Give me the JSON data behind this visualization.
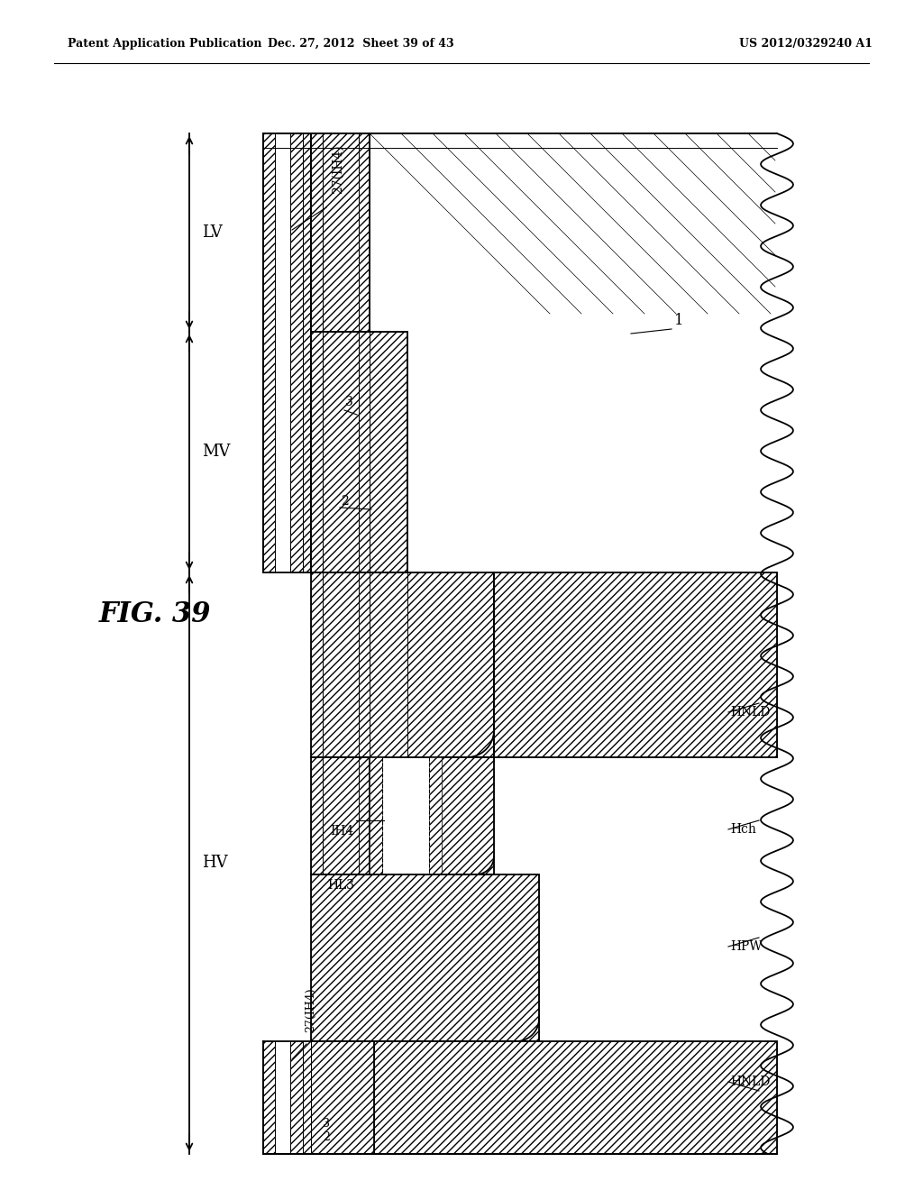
{
  "header_left": "Patent Application Publication",
  "header_center": "Dec. 27, 2012  Sheet 39 of 43",
  "header_right": "US 2012/0329240 A1",
  "fig_label": "FIG. 39",
  "bg_color": "#ffffff",
  "line_color": "#000000",
  "LV_label": "LV",
  "MV_label": "MV",
  "HV_label": "HV",
  "label_27IH4_top": "27(IH4)",
  "label_3_top": "3",
  "label_2_top": "2",
  "label_IH4": "IH4",
  "label_HL3": "HL3",
  "label_HNLD_top": "HNLD",
  "label_Hch": "Hch",
  "label_HPW": "HPW",
  "label_HNLD_bot": "HNLD",
  "label_1": "1",
  "label_27IH4_bot": "27(IH4)",
  "label_3_bot": "3",
  "label_2_bot": "2"
}
